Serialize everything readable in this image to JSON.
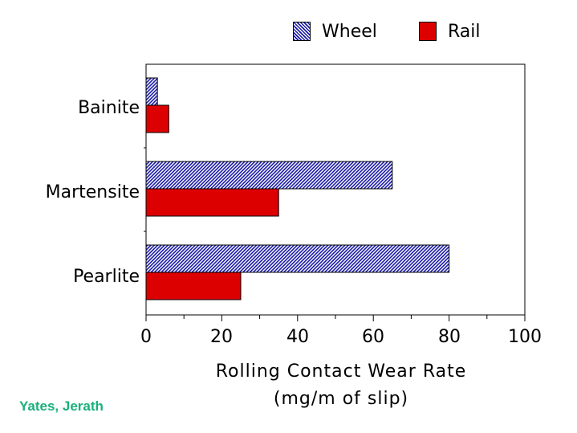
{
  "chart_data": {
    "type": "bar",
    "orientation": "horizontal",
    "categories": [
      "Bainite",
      "Martensite",
      "Pearlite"
    ],
    "series": [
      {
        "name": "Wheel",
        "values": [
          3,
          65,
          80
        ],
        "color": "#1a1aa8",
        "pattern": "diagonal-hatch"
      },
      {
        "name": "Rail",
        "values": [
          6,
          35,
          25
        ],
        "color": "#dd0000",
        "pattern": "solid"
      }
    ],
    "xlabel": "Rolling Contact Wear Rate",
    "xlabel_line2": "(mg/m of slip)",
    "xlim": [
      0,
      100
    ],
    "xticks": [
      "0",
      "20",
      "40",
      "60",
      "80",
      "100"
    ],
    "grid": false,
    "legend_position": "top-right"
  },
  "credit": "Yates, Jerath"
}
